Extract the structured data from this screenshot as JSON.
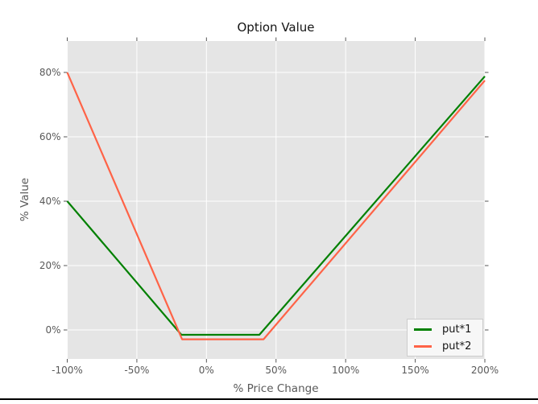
{
  "chart_data": {
    "type": "line",
    "title": "Option Value",
    "xlabel": "% Price Change",
    "ylabel": "% Value",
    "xlim": [
      -100,
      200
    ],
    "ylim": [
      -9,
      89.75
    ],
    "grid": true,
    "legend_position": "lower right",
    "x_ticks": [
      {
        "value": -100,
        "label": "-100%"
      },
      {
        "value": -50,
        "label": "-50%"
      },
      {
        "value": 0,
        "label": "0%"
      },
      {
        "value": 50,
        "label": "50%"
      },
      {
        "value": 100,
        "label": "100%"
      },
      {
        "value": 150,
        "label": "150%"
      },
      {
        "value": 200,
        "label": "200%"
      }
    ],
    "y_ticks": [
      {
        "value": 0,
        "label": "0%"
      },
      {
        "value": 20,
        "label": "20%"
      },
      {
        "value": 40,
        "label": "40%"
      },
      {
        "value": 60,
        "label": "60%"
      },
      {
        "value": 80,
        "label": "80%"
      }
    ],
    "series": [
      {
        "name": "put*1",
        "color": "#008000",
        "points": [
          [
            -100,
            40
          ],
          [
            -18,
            -1.5
          ],
          [
            38,
            -1.5
          ],
          [
            200,
            78.8
          ]
        ]
      },
      {
        "name": "put*2",
        "color": "#ff6347",
        "points": [
          [
            -100,
            80
          ],
          [
            -17.5,
            -2.9
          ],
          [
            41,
            -2.9
          ],
          [
            200,
            77.5
          ]
        ]
      }
    ],
    "colors": {
      "figure_bg": "#ffffff",
      "plot_bg": "#e5e5e5",
      "grid": "#ffffff",
      "tick": "#555555",
      "tick_label": "#595959",
      "axis_label": "#595959",
      "title": "#141414",
      "legend_bg": "#f7f7f7",
      "legend_border": "#cccccc",
      "legend_text": "#141414",
      "window_border": "#000000"
    }
  }
}
